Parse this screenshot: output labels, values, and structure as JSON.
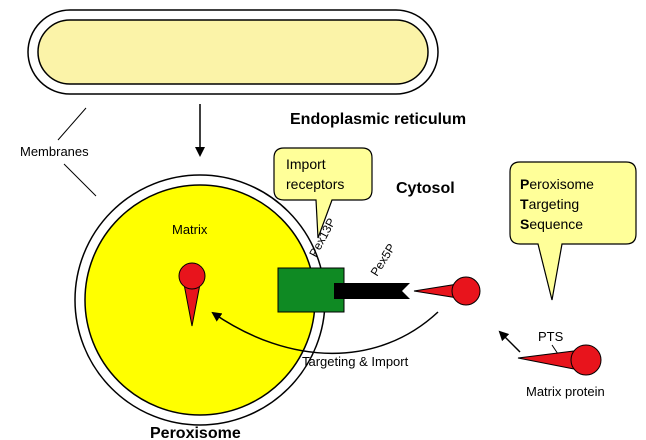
{
  "labels": {
    "er": "Endoplasmic reticulum",
    "membranes": "Membranes",
    "cytosol": "Cytosol",
    "matrix": "Matrix",
    "peroxisome": "Peroxisome",
    "pex13p": "Pex13P",
    "pex5p": "Pex5P",
    "targeting_import": "Targeting & Import",
    "pts": "PTS",
    "matrix_protein": "Matrix protein"
  },
  "callouts": {
    "import_receptors": [
      "Import",
      "receptors"
    ],
    "pts_definition": [
      {
        "initial": "P",
        "rest": "eroxisome"
      },
      {
        "initial": "T",
        "rest": "argeting"
      },
      {
        "initial": "S",
        "rest": "equence"
      }
    ]
  },
  "colors": {
    "er_fill": "#fbf3a8",
    "peroxisome_fill": "#ffff00",
    "callout_fill": "#ffff99",
    "protein_red": "#e8141c",
    "receptor_green": "#0f8a23",
    "pex5p_black": "#000000"
  }
}
